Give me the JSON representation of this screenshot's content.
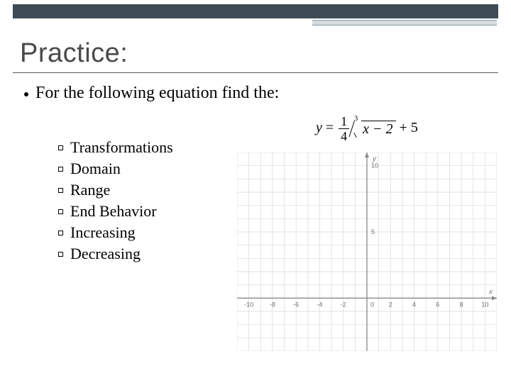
{
  "title": "Practice:",
  "bullet": "For the following equation find the:",
  "subitems": [
    "Transformations",
    "Domain",
    "Range",
    "End Behavior",
    "Increasing",
    "Decreasing"
  ],
  "equation": {
    "lhs": "y",
    "eq": "=",
    "frac_num": "1",
    "frac_den": "4",
    "root_index": "3",
    "radicand": "x − 2",
    "tail": "+ 5"
  },
  "graph": {
    "xlim": [
      -11,
      11
    ],
    "ylim": [
      -4,
      11
    ],
    "xticks": [
      -10,
      -8,
      -6,
      -4,
      -2,
      2,
      4,
      6,
      8,
      10
    ],
    "yticks": [
      5,
      10
    ],
    "axis_labels": {
      "x": "x",
      "y": "y"
    },
    "grid_color": "#d9d9d9",
    "axis_color": "#888888",
    "tick_fontsize": 9,
    "tick_color": "#707070",
    "background": "#ffffff"
  },
  "colors": {
    "topband": "#3e4a54",
    "accent_fill": "#d6dbdf",
    "accent_border": "#8a96a0",
    "title": "#4a4a4a",
    "text": "#000000"
  }
}
